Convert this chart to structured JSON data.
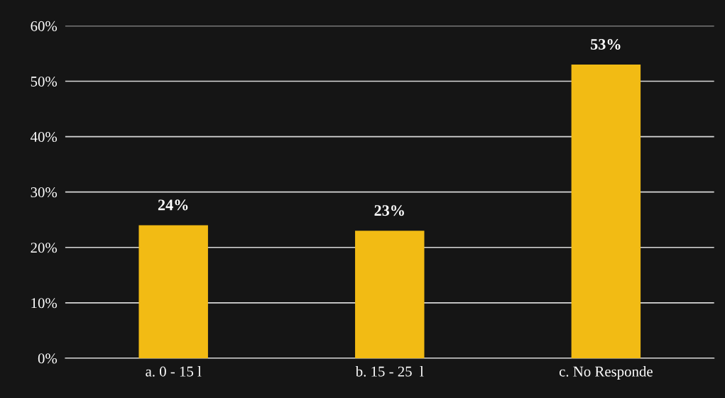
{
  "chart_data": {
    "type": "bar",
    "categories": [
      "a. 0 - 15 l",
      "b. 15 - 25  l",
      "c. No Responde"
    ],
    "values": [
      24,
      23,
      53
    ],
    "color": "#f2bb14",
    "value_labels": [
      "24%",
      "23%",
      "53%"
    ],
    "ylim": [
      0,
      60
    ],
    "yticks": [
      {
        "value": 0,
        "label": "0%"
      },
      {
        "value": 10,
        "label": "10%"
      },
      {
        "value": 20,
        "label": "20%"
      },
      {
        "value": 30,
        "label": "30%"
      },
      {
        "value": 40,
        "label": "40%"
      },
      {
        "value": 50,
        "label": "50%"
      },
      {
        "value": 60,
        "label": "60%"
      }
    ],
    "grid": "y",
    "legend": false
  }
}
